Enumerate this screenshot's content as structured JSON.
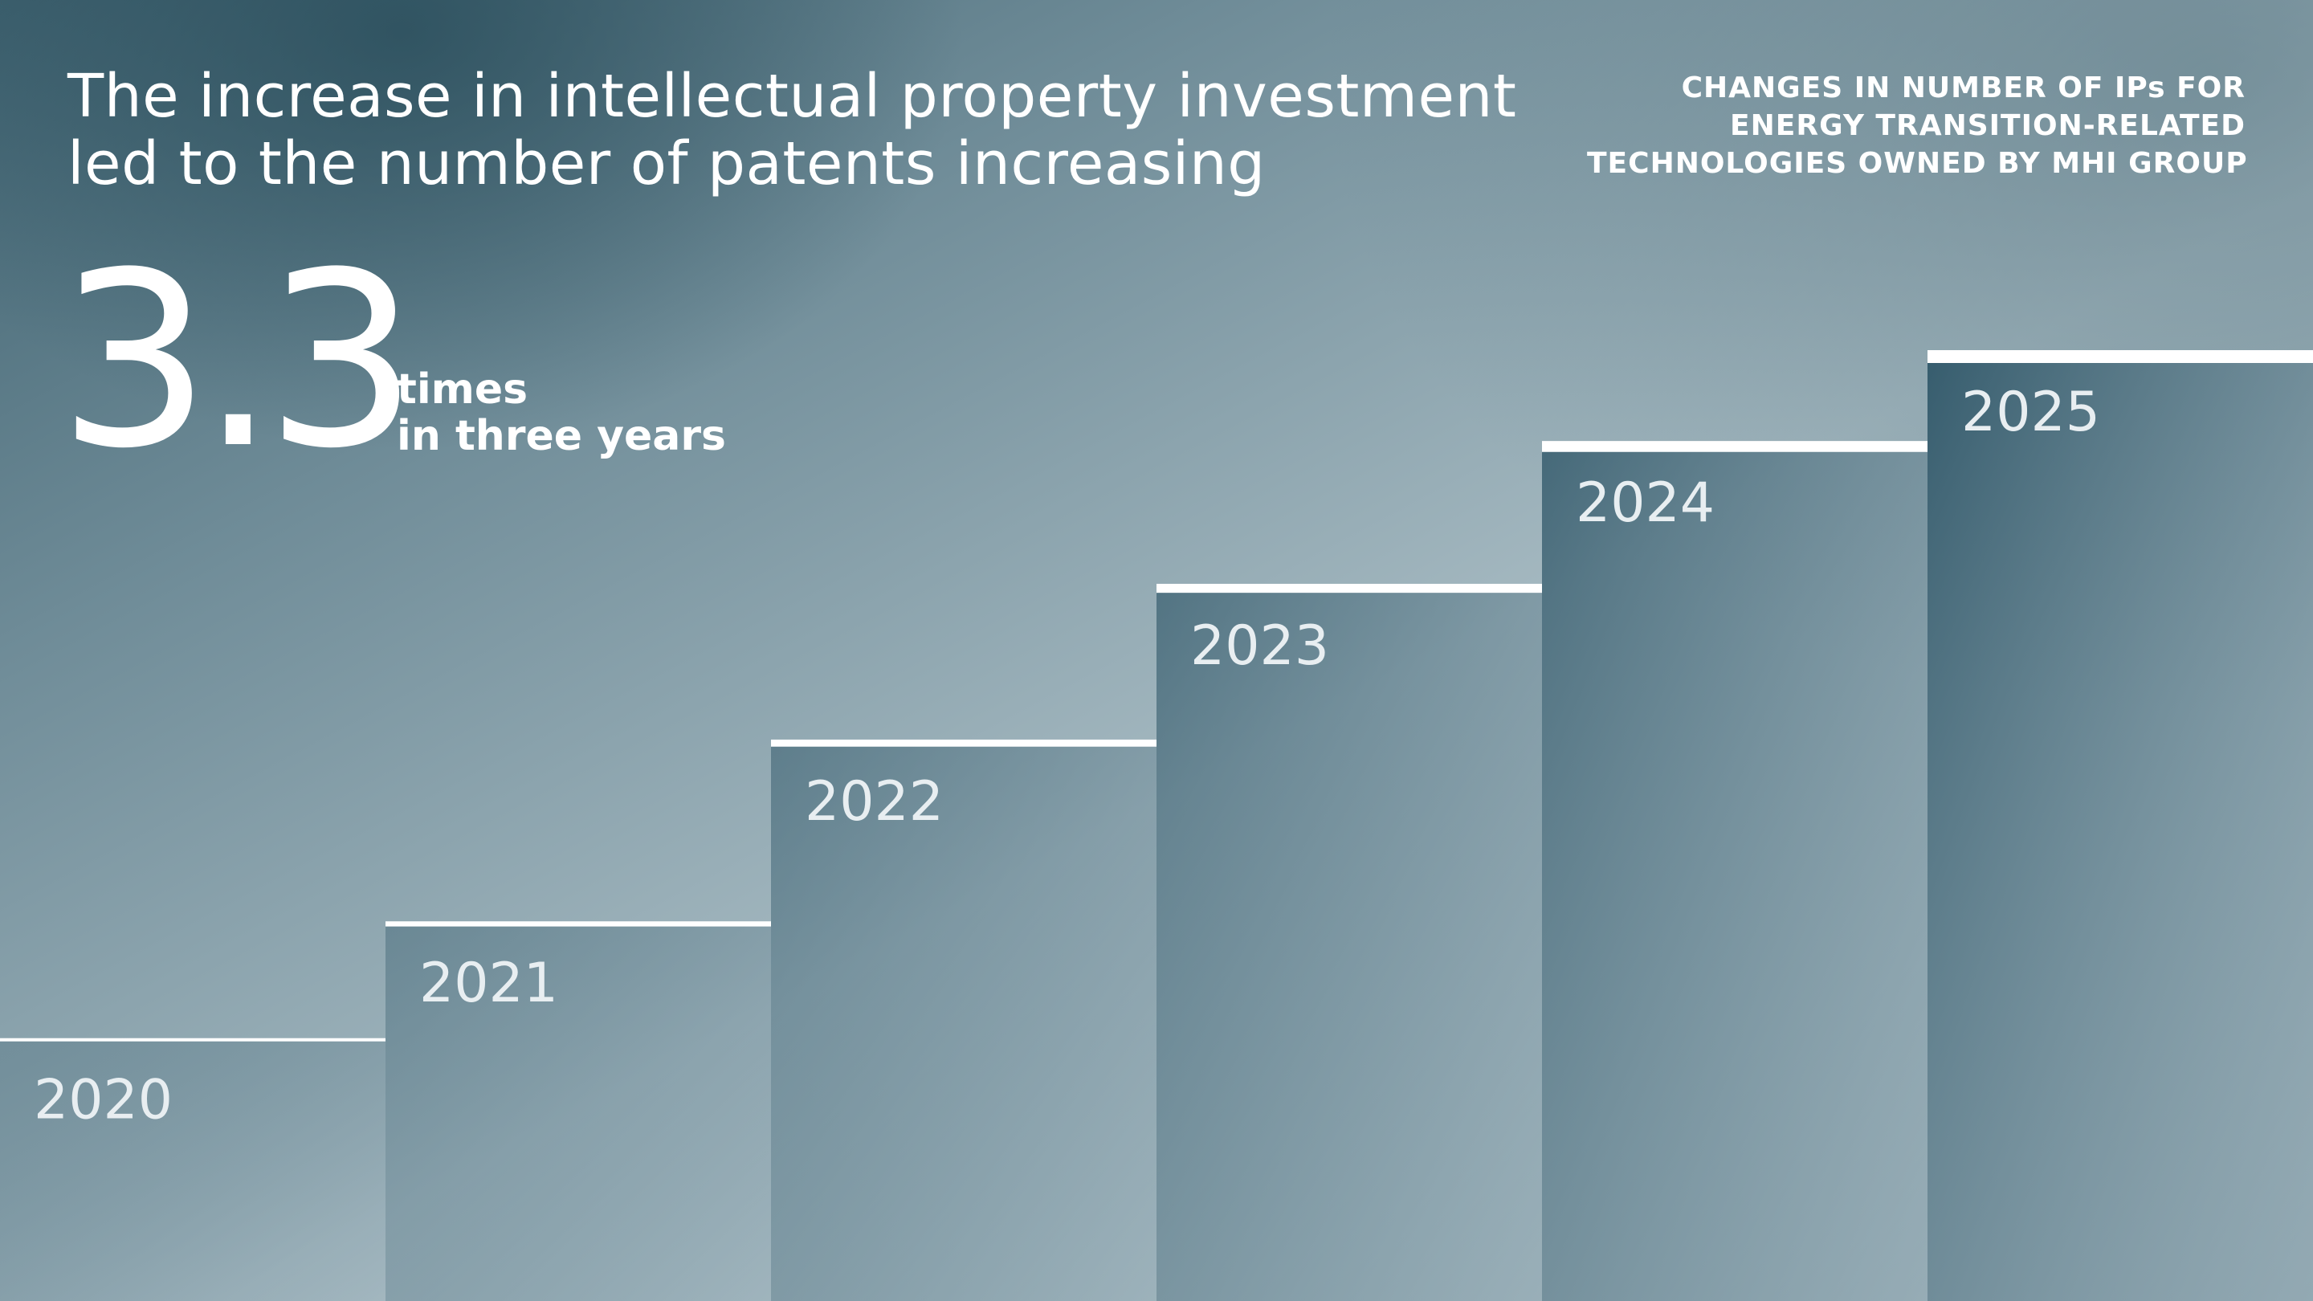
{
  "headline": {
    "line1": "The increase in intellectual property investment",
    "line2": "led to the number of patents increasing"
  },
  "subtitle": {
    "line1": "CHANGES IN NUMBER OF IPs FOR",
    "line2": "ENERGY TRANSITION-RELATED",
    "line3": "TECHNOLOGIES OWNED BY MHI GROUP"
  },
  "kpi": {
    "value": "3.3",
    "unit_line1": "times",
    "unit_line2": "in three years"
  },
  "colors": {
    "bar_dark": "#2c5466",
    "bar_light": "#a3b7c0",
    "step_line": "#ffffff",
    "year_label": "#e8eef1"
  },
  "chart_data": {
    "type": "bar",
    "title": "CHANGES IN NUMBER OF IPs FOR ENERGY TRANSITION-RELATED TECHNOLOGIES OWNED BY MHI GROUP",
    "categories": [
      "2020",
      "2021",
      "2022",
      "2023",
      "2024",
      "2025"
    ],
    "values": [
      1.0,
      1.45,
      2.15,
      2.75,
      3.3,
      3.65
    ],
    "value_scale": "relative to 2020",
    "ylim": [
      0,
      3.65
    ],
    "axes_visible": false,
    "grid": false,
    "legend": "none"
  }
}
